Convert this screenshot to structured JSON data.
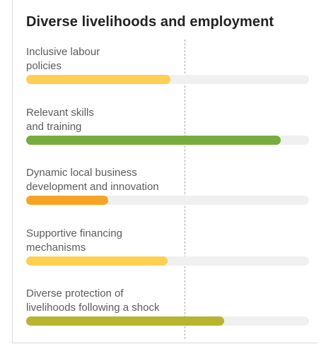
{
  "chart_data": {
    "type": "bar",
    "orientation": "horizontal",
    "title": "Diverse livelihoods and employment",
    "categories": [
      "Inclusive labour\npolicies",
      "Relevant skills\nand training",
      "Dynamic local business\ndevelopment and innovation",
      "Supportive financing\nmechanisms",
      "Diverse protection of\nlivelihoods following a shock"
    ],
    "values": [
      0.51,
      0.9,
      0.29,
      0.5,
      0.7
    ],
    "colors": [
      "#fdd053",
      "#78ac3e",
      "#f7a424",
      "#fdd053",
      "#b7b52e"
    ],
    "reference_line": 0.56,
    "xlim": [
      0,
      1
    ],
    "grid": false
  }
}
